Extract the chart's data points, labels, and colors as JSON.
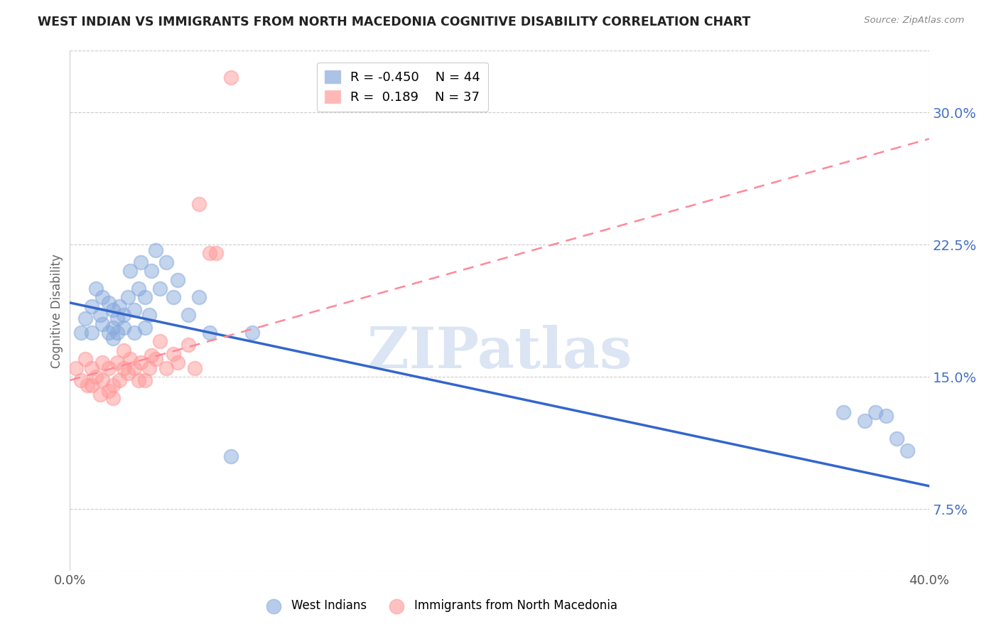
{
  "title": "WEST INDIAN VS IMMIGRANTS FROM NORTH MACEDONIA COGNITIVE DISABILITY CORRELATION CHART",
  "source": "Source: ZipAtlas.com",
  "ylabel": "Cognitive Disability",
  "ytick_labels": [
    "7.5%",
    "15.0%",
    "22.5%",
    "30.0%"
  ],
  "ytick_values": [
    0.075,
    0.15,
    0.225,
    0.3
  ],
  "xlim": [
    0.0,
    0.4
  ],
  "ylim": [
    0.04,
    0.335
  ],
  "legend_blue_R": "-0.450",
  "legend_blue_N": "44",
  "legend_pink_R": "0.189",
  "legend_pink_N": "37",
  "blue_color": "#88AADD",
  "pink_color": "#FF9999",
  "blue_line_color": "#3366CC",
  "pink_line_color": "#FF8899",
  "watermark": "ZIPatlas",
  "blue_scatter_x": [
    0.005,
    0.007,
    0.01,
    0.01,
    0.012,
    0.014,
    0.015,
    0.015,
    0.018,
    0.018,
    0.02,
    0.02,
    0.02,
    0.022,
    0.022,
    0.023,
    0.025,
    0.025,
    0.027,
    0.028,
    0.03,
    0.03,
    0.032,
    0.033,
    0.035,
    0.035,
    0.037,
    0.038,
    0.04,
    0.042,
    0.045,
    0.048,
    0.05,
    0.055,
    0.06,
    0.065,
    0.075,
    0.085,
    0.36,
    0.37,
    0.375,
    0.38,
    0.385,
    0.39
  ],
  "blue_scatter_y": [
    0.175,
    0.183,
    0.19,
    0.175,
    0.2,
    0.185,
    0.18,
    0.195,
    0.175,
    0.192,
    0.172,
    0.178,
    0.188,
    0.175,
    0.183,
    0.19,
    0.178,
    0.185,
    0.195,
    0.21,
    0.175,
    0.188,
    0.2,
    0.215,
    0.178,
    0.195,
    0.185,
    0.21,
    0.222,
    0.2,
    0.215,
    0.195,
    0.205,
    0.185,
    0.195,
    0.175,
    0.105,
    0.175,
    0.13,
    0.125,
    0.13,
    0.128,
    0.115,
    0.108
  ],
  "pink_scatter_x": [
    0.003,
    0.005,
    0.007,
    0.008,
    0.01,
    0.01,
    0.012,
    0.014,
    0.015,
    0.015,
    0.018,
    0.018,
    0.02,
    0.02,
    0.022,
    0.023,
    0.025,
    0.025,
    0.027,
    0.028,
    0.03,
    0.032,
    0.033,
    0.035,
    0.037,
    0.038,
    0.04,
    0.042,
    0.045,
    0.048,
    0.05,
    0.055,
    0.058,
    0.06,
    0.065,
    0.068,
    0.075
  ],
  "pink_scatter_y": [
    0.155,
    0.148,
    0.16,
    0.145,
    0.155,
    0.145,
    0.15,
    0.14,
    0.148,
    0.158,
    0.142,
    0.155,
    0.138,
    0.145,
    0.158,
    0.148,
    0.155,
    0.165,
    0.152,
    0.16,
    0.155,
    0.148,
    0.158,
    0.148,
    0.155,
    0.162,
    0.16,
    0.17,
    0.155,
    0.163,
    0.158,
    0.168,
    0.155,
    0.248,
    0.22,
    0.22,
    0.32
  ],
  "blue_line_x": [
    0.0,
    0.4
  ],
  "blue_line_y_start": 0.192,
  "blue_line_y_end": 0.088,
  "pink_line_x": [
    0.0,
    0.4
  ],
  "pink_line_y_start": 0.148,
  "pink_line_y_end": 0.285,
  "background_color": "#FFFFFF",
  "grid_color": "#CCCCCC"
}
